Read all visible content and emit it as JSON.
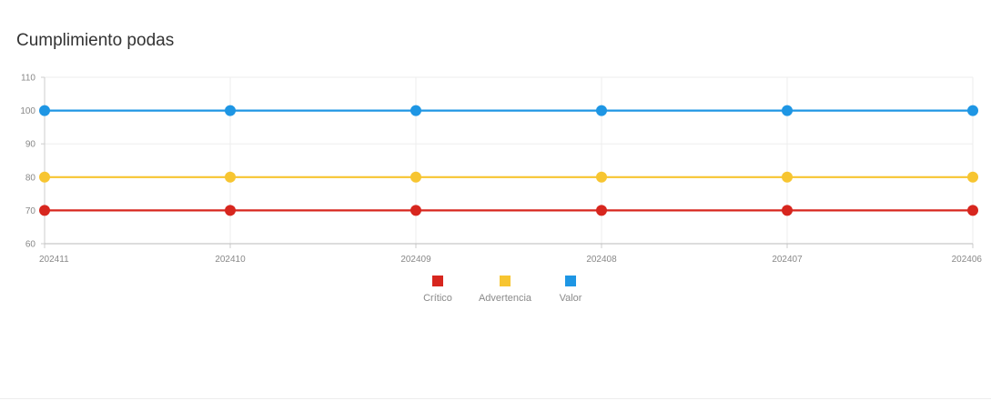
{
  "chart_data": {
    "type": "line",
    "title": "Cumplimiento podas",
    "xlabel": "",
    "ylabel": "",
    "categories": [
      "202411",
      "202410",
      "202409",
      "202408",
      "202407",
      "202406"
    ],
    "ylim": [
      60,
      110
    ],
    "yticks": [
      60,
      70,
      80,
      90,
      100,
      110
    ],
    "grid": true,
    "legend_position": "bottom",
    "series": [
      {
        "name": "Crítico",
        "color": "#d7261e",
        "values": [
          70,
          70,
          70,
          70,
          70,
          70
        ]
      },
      {
        "name": "Advertencia",
        "color": "#f7c531",
        "values": [
          80,
          80,
          80,
          80,
          80,
          80
        ]
      },
      {
        "name": "Valor",
        "color": "#1e96e4",
        "values": [
          100,
          100,
          100,
          100,
          100,
          100
        ]
      }
    ]
  }
}
